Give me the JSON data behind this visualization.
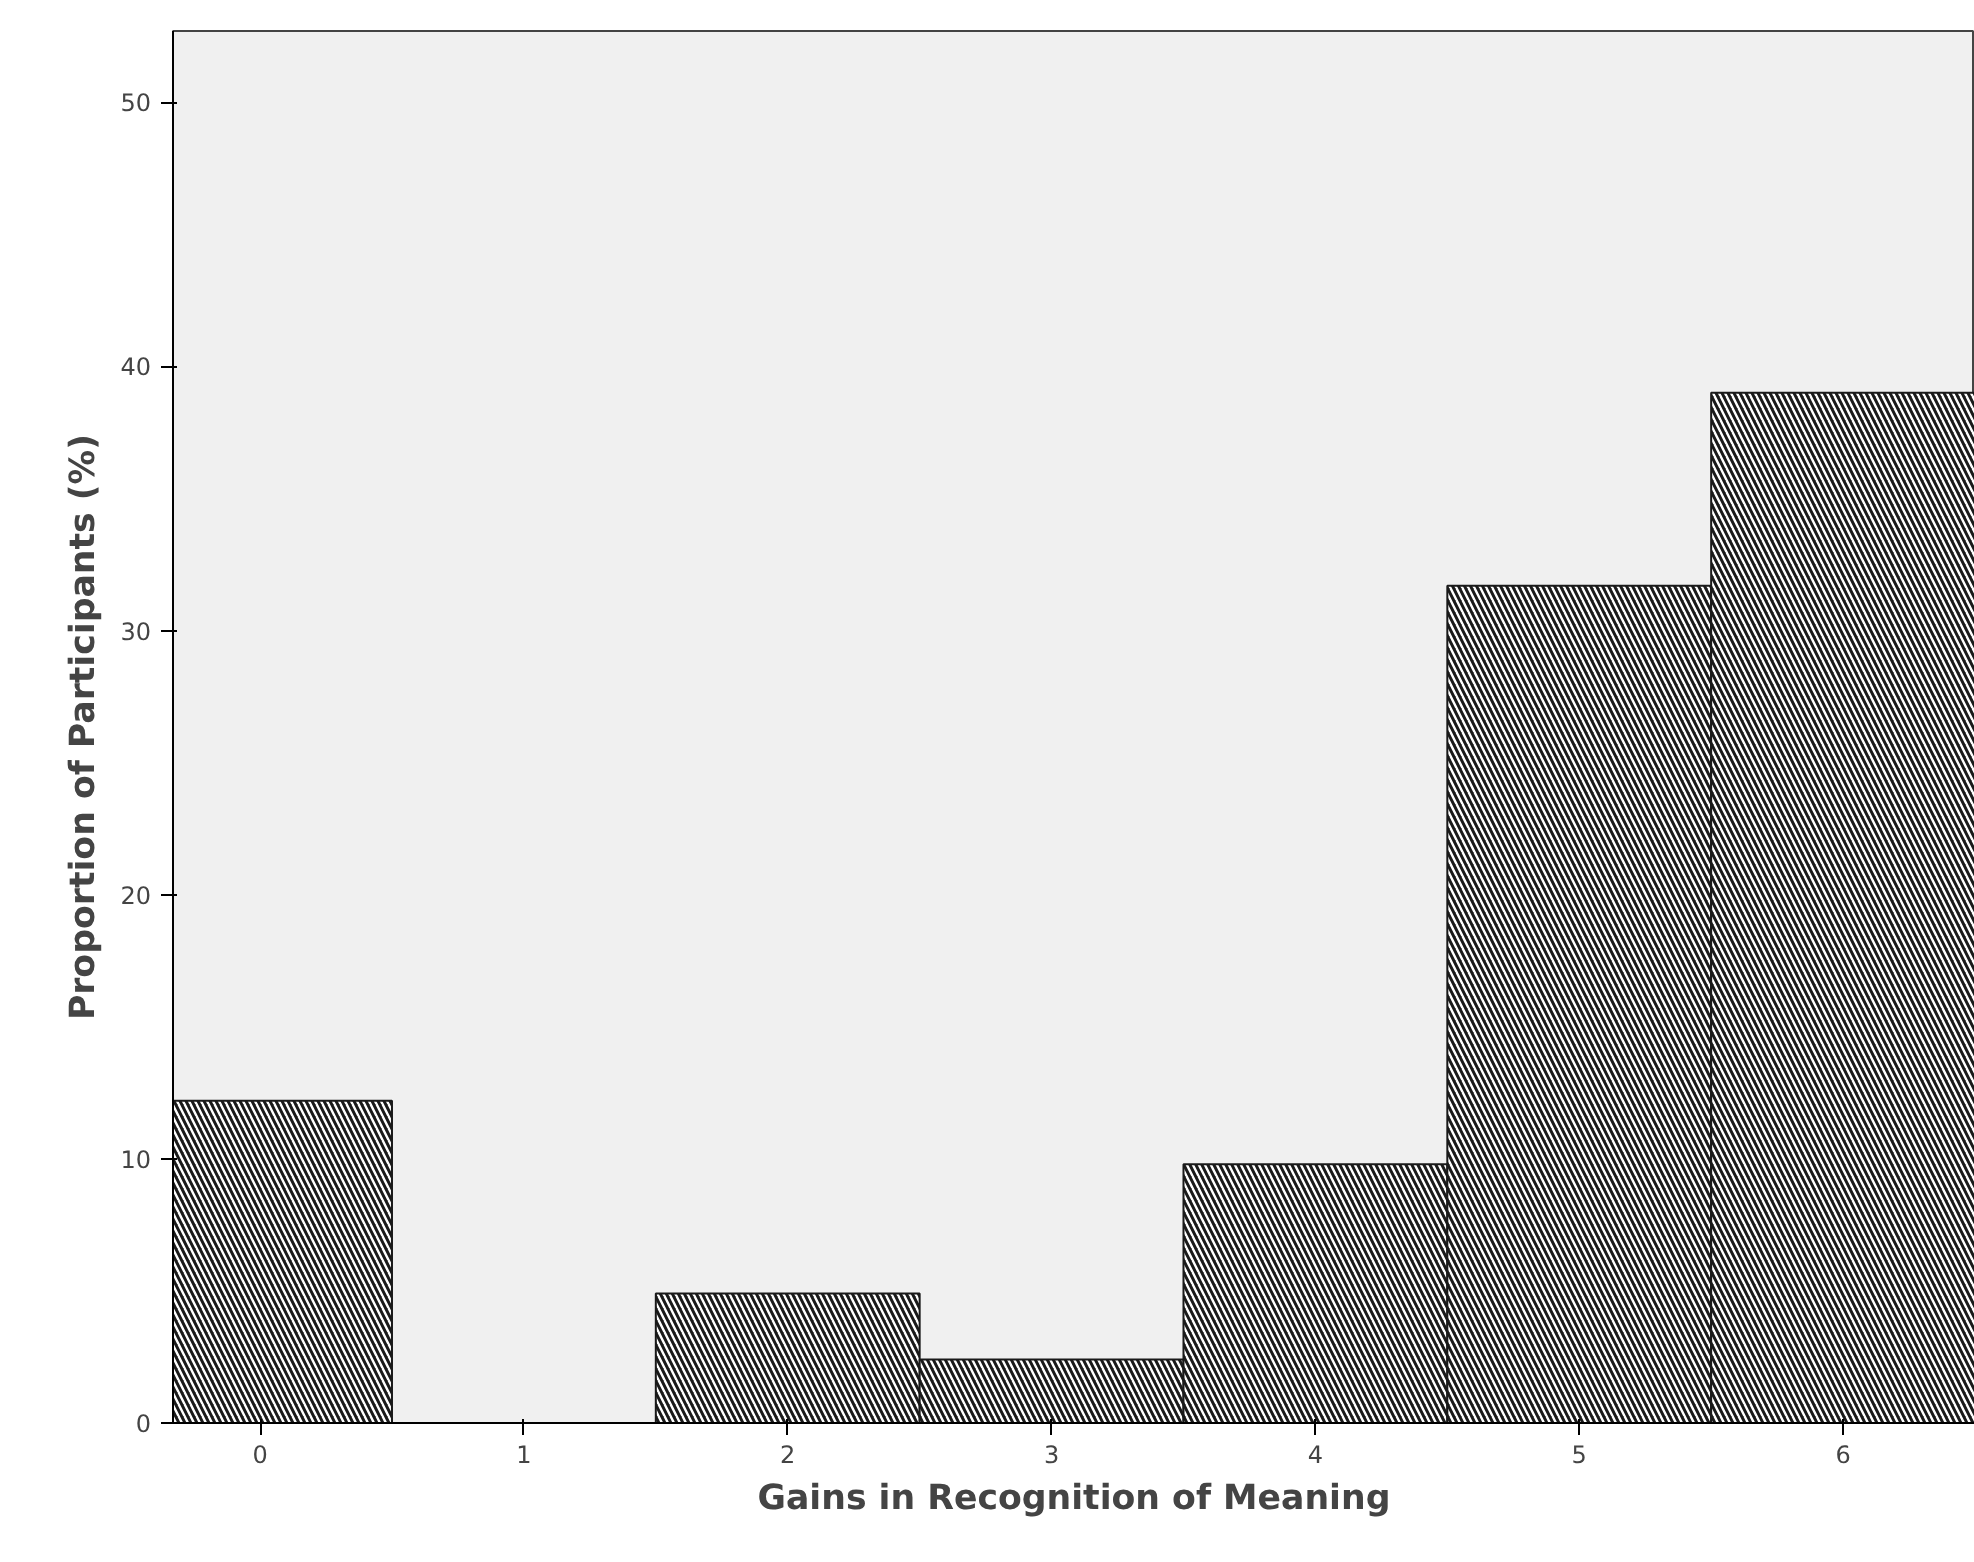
{
  "chart_data": {
    "type": "histogram",
    "xlabel": "Gains in Recognition of Meaning",
    "ylabel": "Proportion of Participants (%)",
    "bins": [
      -0.5,
      0.5,
      1.5,
      2.5,
      3.5,
      4.5,
      5.5,
      6.5
    ],
    "values": [
      12.2,
      0,
      4.9,
      2.4,
      9.8,
      31.7,
      39.0
    ],
    "color": "#1a1a1a",
    "xlim": [
      -0.33,
      6.5
    ],
    "xticks": [
      0,
      1,
      2,
      3,
      4,
      5,
      6
    ],
    "ylim": [
      0,
      52.7
    ],
    "yticks": [
      0,
      10,
      20,
      30,
      40,
      50
    ],
    "grid": false
  }
}
